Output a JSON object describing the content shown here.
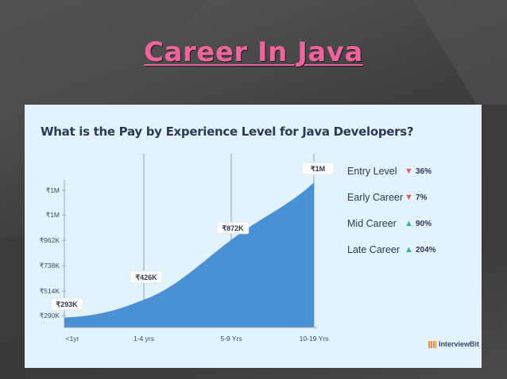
{
  "slide": {
    "title": "Career In Java"
  },
  "chart_data": {
    "type": "area",
    "title": "What is the Pay by Experience Level for Java Developers?",
    "categories": [
      "<1yr",
      "1-4 yrs",
      "5-9 Yrs",
      "10-19 Yrs"
    ],
    "y_ticks": [
      "₹290K",
      "₹514K",
      "₹738K",
      "₹962K",
      "₹1M",
      "₹1M"
    ],
    "series": [
      {
        "values": [
          293000,
          426000,
          872000,
          1300000
        ],
        "labels": [
          "₹293K",
          "₹426K",
          "₹872K",
          "₹1M"
        ]
      }
    ],
    "ylim": [
      290000,
      1300000
    ],
    "grid": "vertical",
    "legend_placement": "right",
    "colors": {
      "area": "#4a90d4",
      "up": "#2bb3a8",
      "down": "#e4605e"
    }
  },
  "legend": [
    {
      "label": "Entry Level",
      "direction": "down",
      "value": "36%"
    },
    {
      "label": "Early Career",
      "direction": "down",
      "value": "7%"
    },
    {
      "label": "Mid Career",
      "direction": "up",
      "value": "90%"
    },
    {
      "label": "Late Career",
      "direction": "up",
      "value": "204%"
    }
  ],
  "brand": {
    "name": "InterviewBit"
  }
}
